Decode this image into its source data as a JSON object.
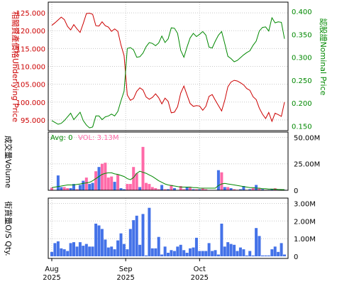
{
  "colors": {
    "underlying": "#cc0000",
    "nominal": "#008800",
    "bar_up": "#4472e8",
    "bar_down": "#ff6aa8",
    "vol_line": "#008800",
    "grid": "#c8c8c8",
    "frame": "#000000"
  },
  "chart_data": [
    {
      "type": "line",
      "panel": "price",
      "left_axis_label": "相關資產價格Underlying Price",
      "right_axis_label": "認股證Nominal Price",
      "left_ticks": [
        "95.000",
        "100.000",
        "105.000",
        "110.000",
        "115.000",
        "120.000",
        "125.000"
      ],
      "right_ticks": [
        "0.150",
        "0.200",
        "0.250",
        "0.300",
        "0.350",
        "0.400"
      ],
      "left_ylim": [
        92,
        128
      ],
      "right_ylim": [
        0.14,
        0.42
      ],
      "grid": true,
      "series": [
        {
          "axis": "left",
          "values": [
            121.5,
            122.2,
            123.0,
            123.8,
            123.1,
            121.2,
            120.2,
            121.7,
            120.5,
            119.5,
            122.0,
            124.8,
            124.9,
            124.6,
            121.4,
            121.3,
            122.5,
            121.4,
            121.0,
            119.8,
            120.5,
            119.8,
            116.0,
            113.0,
            102.0,
            100.5,
            101.0,
            103.0,
            104.0,
            103.4,
            101.4,
            100.8,
            101.3,
            102.3,
            101.2,
            99.5,
            101.1,
            100.2,
            97.0,
            97.2,
            98.7,
            102.5,
            104.5,
            102.0,
            99.6,
            98.8,
            99.0,
            98.9,
            97.7,
            98.8,
            101.6,
            102.1,
            100.5,
            99.0,
            97.5,
            100.5,
            104.3,
            105.6,
            106.1,
            105.9,
            105.4,
            104.8,
            103.8,
            103.3,
            101.5,
            100.7,
            98.3,
            96.6,
            95.4,
            97.1,
            94.6,
            96.9,
            96.5,
            96.0,
            100.0
          ]
        },
        {
          "axis": "right",
          "values": [
            0.162,
            0.158,
            0.154,
            0.156,
            0.162,
            0.17,
            0.178,
            0.164,
            0.172,
            0.18,
            0.162,
            0.152,
            0.146,
            0.148,
            0.172,
            0.172,
            0.164,
            0.17,
            0.172,
            0.176,
            0.172,
            0.182,
            0.205,
            0.226,
            0.319,
            0.321,
            0.316,
            0.3,
            0.301,
            0.309,
            0.323,
            0.332,
            0.33,
            0.325,
            0.331,
            0.346,
            0.332,
            0.34,
            0.364,
            0.363,
            0.352,
            0.315,
            0.3,
            0.322,
            0.342,
            0.352,
            0.345,
            0.35,
            0.356,
            0.348,
            0.322,
            0.32,
            0.335,
            0.348,
            0.356,
            0.33,
            0.302,
            0.297,
            0.29,
            0.293,
            0.299,
            0.305,
            0.31,
            0.314,
            0.326,
            0.335,
            0.357,
            0.365,
            0.366,
            0.357,
            0.386,
            0.375,
            0.377,
            0.376,
            0.34
          ]
        }
      ]
    },
    {
      "type": "bar",
      "panel": "volume",
      "left_axis_label": "成交量Volume",
      "avg_label": "Avg: 0",
      "vol_label": "VOL: 3.13M",
      "right_ticks": [
        "0",
        "25.00M",
        "50.00M"
      ],
      "ylim": [
        0,
        55
      ],
      "unit": "M",
      "grid": true,
      "values": [
        2.5,
        0.0,
        14.0,
        3.0,
        3.0,
        2.0,
        2.0,
        6.0,
        1.0,
        5.0,
        9.0,
        12.0,
        6.0,
        7.0,
        18.0,
        22.0,
        25.0,
        26.0,
        12.0,
        13.0,
        8.0,
        15.0,
        2.0,
        1.0,
        6.0,
        6.0,
        22.0,
        16.0,
        3.0,
        41.0,
        7.0,
        6.0,
        3.0,
        2.0,
        1.0,
        5.0,
        1.0,
        1.0,
        5.0,
        2.0,
        0.0,
        4.0,
        1.0,
        3.0,
        3.0,
        1.0,
        1.0,
        1.0,
        2.0,
        1.0,
        0.0,
        0.0,
        0.0,
        19.0,
        17.0,
        3.0,
        3.0,
        2.0,
        1.0,
        0.5,
        1.0,
        4.0,
        0.5,
        1.0,
        2.0,
        5.0,
        2.0,
        1.0,
        0.5,
        0.5,
        1.0,
        2.0,
        0.5,
        0.5,
        0.5
      ],
      "up": [
        false,
        false,
        true,
        true,
        false,
        false,
        true,
        true,
        false,
        true,
        true,
        false,
        true,
        true,
        false,
        true,
        false,
        false,
        false,
        false,
        true,
        false,
        true,
        true,
        false,
        false,
        false,
        false,
        true,
        false,
        false,
        false,
        false,
        false,
        false,
        true,
        false,
        true,
        false,
        true,
        false,
        false,
        false,
        true,
        false,
        true,
        false,
        true,
        false,
        false,
        false,
        false,
        false,
        true,
        false,
        true,
        false,
        true,
        false,
        false,
        true,
        true,
        false,
        true,
        false,
        true,
        false,
        true,
        false,
        true,
        true,
        false,
        true,
        false,
        true
      ],
      "ma": [
        2.5,
        3,
        3.5,
        4,
        4.5,
        5,
        5,
        5,
        5.5,
        6,
        6.5,
        7,
        7.5,
        9,
        11,
        13,
        15,
        16,
        16.5,
        16.5,
        15.5,
        15,
        14,
        13,
        11,
        10,
        12,
        16,
        18,
        17,
        16,
        14.5,
        13,
        11,
        9,
        7.5,
        6,
        5,
        4.5,
        4,
        3.5,
        3,
        3,
        3,
        3,
        2.5,
        2.5,
        2,
        2,
        2,
        2,
        2,
        2,
        4.5,
        6,
        6.5,
        6,
        5.5,
        5,
        4.5,
        4,
        3.5,
        3,
        2.5,
        2.5,
        2,
        2,
        1.5,
        1.5,
        1.2,
        1.2,
        1.0,
        0.8,
        0.7,
        0.6
      ]
    },
    {
      "type": "bar",
      "panel": "outstanding",
      "left_axis_label": "街貨量O/S Qty.",
      "right_ticks": [
        "0",
        "1.00M",
        "2.00M",
        "3.00M"
      ],
      "ylim": [
        0,
        3.3
      ],
      "unit": "M",
      "grid": true,
      "values": [
        0.25,
        0.75,
        0.85,
        0.45,
        0.4,
        0.3,
        0.75,
        0.8,
        0.55,
        0.8,
        0.6,
        0.7,
        0.55,
        0.55,
        1.85,
        1.75,
        1.55,
        0.95,
        0.5,
        0.55,
        0.4,
        0.9,
        1.3,
        0.7,
        0.4,
        1.55,
        2.05,
        2.3,
        0.65,
        2.4,
        0.05,
        2.75,
        0.45,
        0.45,
        1.1,
        0.1,
        0.55,
        0.2,
        0.35,
        0.3,
        0.55,
        0.65,
        0.35,
        0.2,
        0.45,
        0.5,
        1.05,
        0.3,
        0.3,
        0.3,
        0.75,
        0.3,
        0.35,
        0.1,
        1.85,
        0.55,
        0.8,
        0.7,
        0.65,
        0.3,
        0.5,
        0.4,
        0.05,
        0.3,
        0.05,
        1.6,
        1.15,
        0.05,
        0.05,
        0.05,
        0.4,
        0.55,
        0.25,
        0.75,
        0.1
      ]
    }
  ],
  "x_axis": {
    "ticks": [
      {
        "month": "Aug",
        "year": "2025",
        "index": 0
      },
      {
        "month": "Sep",
        "year": "2025",
        "index": 23.5
      },
      {
        "month": "Oct",
        "year": "2025",
        "index": 47
      }
    ]
  }
}
